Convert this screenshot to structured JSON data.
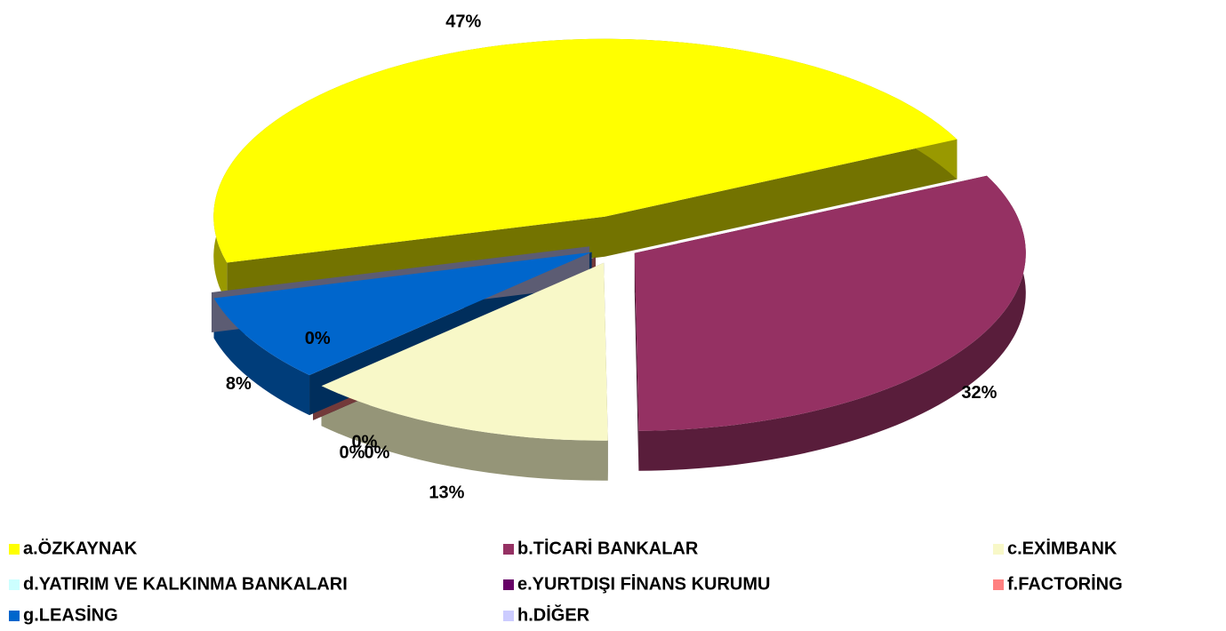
{
  "chart_data": {
    "type": "pie",
    "categories": [
      "a.ÖZKAYNAK",
      "b.TİCARİ BANKALAR",
      "c.EXİMBANK",
      "d.YATIRIM VE KALKINMA BANKALARI",
      "e.YURTDIŞI FİNANS KURUMU",
      "f.FACTORİNG",
      "g.LEASİNG",
      "h.DİĞER"
    ],
    "values": [
      47,
      32,
      13,
      0,
      0,
      0,
      8,
      0
    ],
    "value_labels": [
      "47%",
      "32%",
      "13%",
      "0%",
      "0%",
      "0%",
      "8%",
      "0%"
    ],
    "colors": [
      "#ffff00",
      "#953163",
      "#f8f8c8",
      "#ccffff",
      "#660066",
      "#ff8080",
      "#0066cc",
      "#ccccff"
    ],
    "legend": "bottom"
  }
}
